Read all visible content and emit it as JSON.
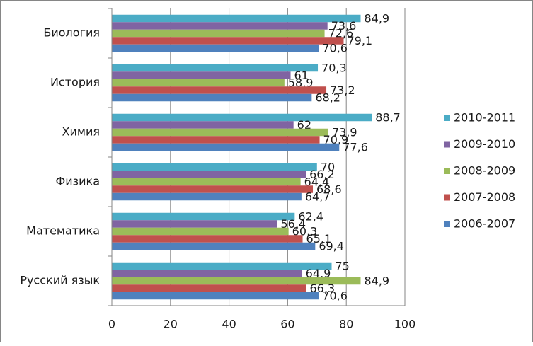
{
  "chart_data": {
    "type": "bar",
    "orientation": "horizontal",
    "categories": [
      "Биология",
      "История",
      "Химия",
      "Физика",
      "Математика",
      "Русский язык"
    ],
    "series": [
      {
        "name": "2006-2007",
        "color": "#4F81BD",
        "values": [
          70.6,
          68.2,
          77.6,
          64.7,
          69.4,
          70.6
        ],
        "labels": [
          "70,6",
          "68,2",
          "77,6",
          "64,7",
          "69,4",
          "70,6"
        ]
      },
      {
        "name": "2007-2008",
        "color": "#C0504D",
        "values": [
          79.1,
          73.2,
          70.9,
          68.6,
          65.1,
          66.3
        ],
        "labels": [
          "79,1",
          "73,2",
          "70,9",
          "68,6",
          "65,1",
          "66,3"
        ]
      },
      {
        "name": "2008-2009",
        "color": "#9BBB59",
        "values": [
          72.6,
          58.9,
          73.9,
          64.4,
          60.3,
          84.9
        ],
        "labels": [
          "72,6",
          "58,9",
          "73,9",
          "64,4",
          "60,3",
          "84,9"
        ]
      },
      {
        "name": "2009-2010",
        "color": "#8064A2",
        "values": [
          73.6,
          61,
          62,
          66.2,
          56.4,
          64.9
        ],
        "labels": [
          "73,6",
          "61",
          "62",
          "66,2",
          "56,4",
          "64,9"
        ]
      },
      {
        "name": "2010-2011",
        "color": "#4BACC6",
        "values": [
          84.9,
          70.3,
          88.7,
          70,
          62.4,
          75
        ],
        "labels": [
          "84,9",
          "70,3",
          "88,7",
          "70",
          "62,4",
          "75"
        ]
      }
    ],
    "xlim": [
      0,
      100
    ],
    "xticks": [
      0,
      20,
      40,
      60,
      80,
      100
    ],
    "xtick_labels": [
      "0",
      "20",
      "40",
      "60",
      "80",
      "100"
    ],
    "legend_position": "right",
    "legend_order": [
      "2010-2011",
      "2009-2010",
      "2008-2009",
      "2007-2008",
      "2006-2007"
    ],
    "grid": "vertical",
    "title": "",
    "xlabel": "",
    "ylabel": ""
  }
}
